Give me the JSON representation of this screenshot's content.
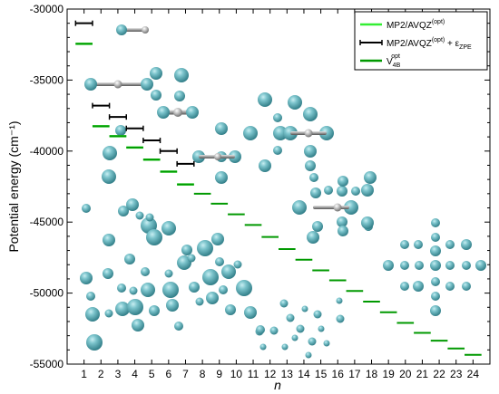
{
  "chart_data": {
    "type": "scatter",
    "xlabel": "n",
    "ylabel": "Potential energy  (cm⁻¹)",
    "xlim": [
      0,
      25
    ],
    "ylim": [
      -55000,
      -30000
    ],
    "x_ticks": [
      "1",
      "2",
      "3",
      "4",
      "5",
      "6",
      "7",
      "8",
      "9",
      "10",
      "11",
      "12",
      "13",
      "14",
      "15",
      "16",
      "17",
      "18",
      "19",
      "20",
      "21",
      "22",
      "23",
      "24"
    ],
    "y_ticks": [
      "-30000",
      "-35000",
      "-40000",
      "-45000",
      "-50000",
      "-55000"
    ],
    "y_tick_values": [
      -30000,
      -35000,
      -40000,
      -45000,
      -50000,
      -55000
    ],
    "legend": {
      "position": "top-right",
      "entries": [
        {
          "key": "mp2",
          "text": "MP2/AVQZ",
          "sup": "(opt)",
          "after": "",
          "sub": "",
          "color": "#33ee33",
          "marker": "line"
        },
        {
          "key": "zpe",
          "text": "MP2/AVQZ",
          "sup": "(opt)",
          "after": " + ε",
          "sub": "ZPE",
          "color": "#000000",
          "marker": "errorbar"
        },
        {
          "key": "v4b",
          "text": "V",
          "sub": "4B",
          "sup": "opt",
          "after": "",
          "color": "#009900",
          "marker": "line"
        }
      ]
    },
    "series": [
      {
        "key": "mp2",
        "name": "MP2/AVQZ(opt)",
        "color": "#33ee33",
        "x": [
          1,
          2,
          3,
          4,
          5,
          6,
          7
        ],
        "values": [
          -32450,
          -38250,
          -38950,
          -39750,
          -40600,
          -41450,
          -42350
        ]
      },
      {
        "key": "zpe",
        "name": "MP2/AVQZ(opt) + εZPE",
        "color": "#000000",
        "x": [
          1,
          2,
          3,
          4,
          5,
          6,
          7
        ],
        "values": [
          -31000,
          -36800,
          -37600,
          -38400,
          -39250,
          -40000,
          -40900
        ]
      },
      {
        "key": "v4b",
        "name": "V4B opt",
        "color": "#009900",
        "x": [
          1,
          2,
          3,
          4,
          5,
          6,
          7,
          8,
          9,
          10,
          11,
          12,
          13,
          14,
          15,
          16,
          17,
          18,
          19,
          20,
          21,
          22,
          23,
          24
        ],
        "values": [
          -32450,
          -38250,
          -38950,
          -39750,
          -40600,
          -41450,
          -42350,
          -43000,
          -43700,
          -44450,
          -45200,
          -46050,
          -46900,
          -47650,
          -48400,
          -49100,
          -49850,
          -50600,
          -51350,
          -52100,
          -52800,
          -53350,
          -53900,
          -54350
        ]
      }
    ]
  }
}
